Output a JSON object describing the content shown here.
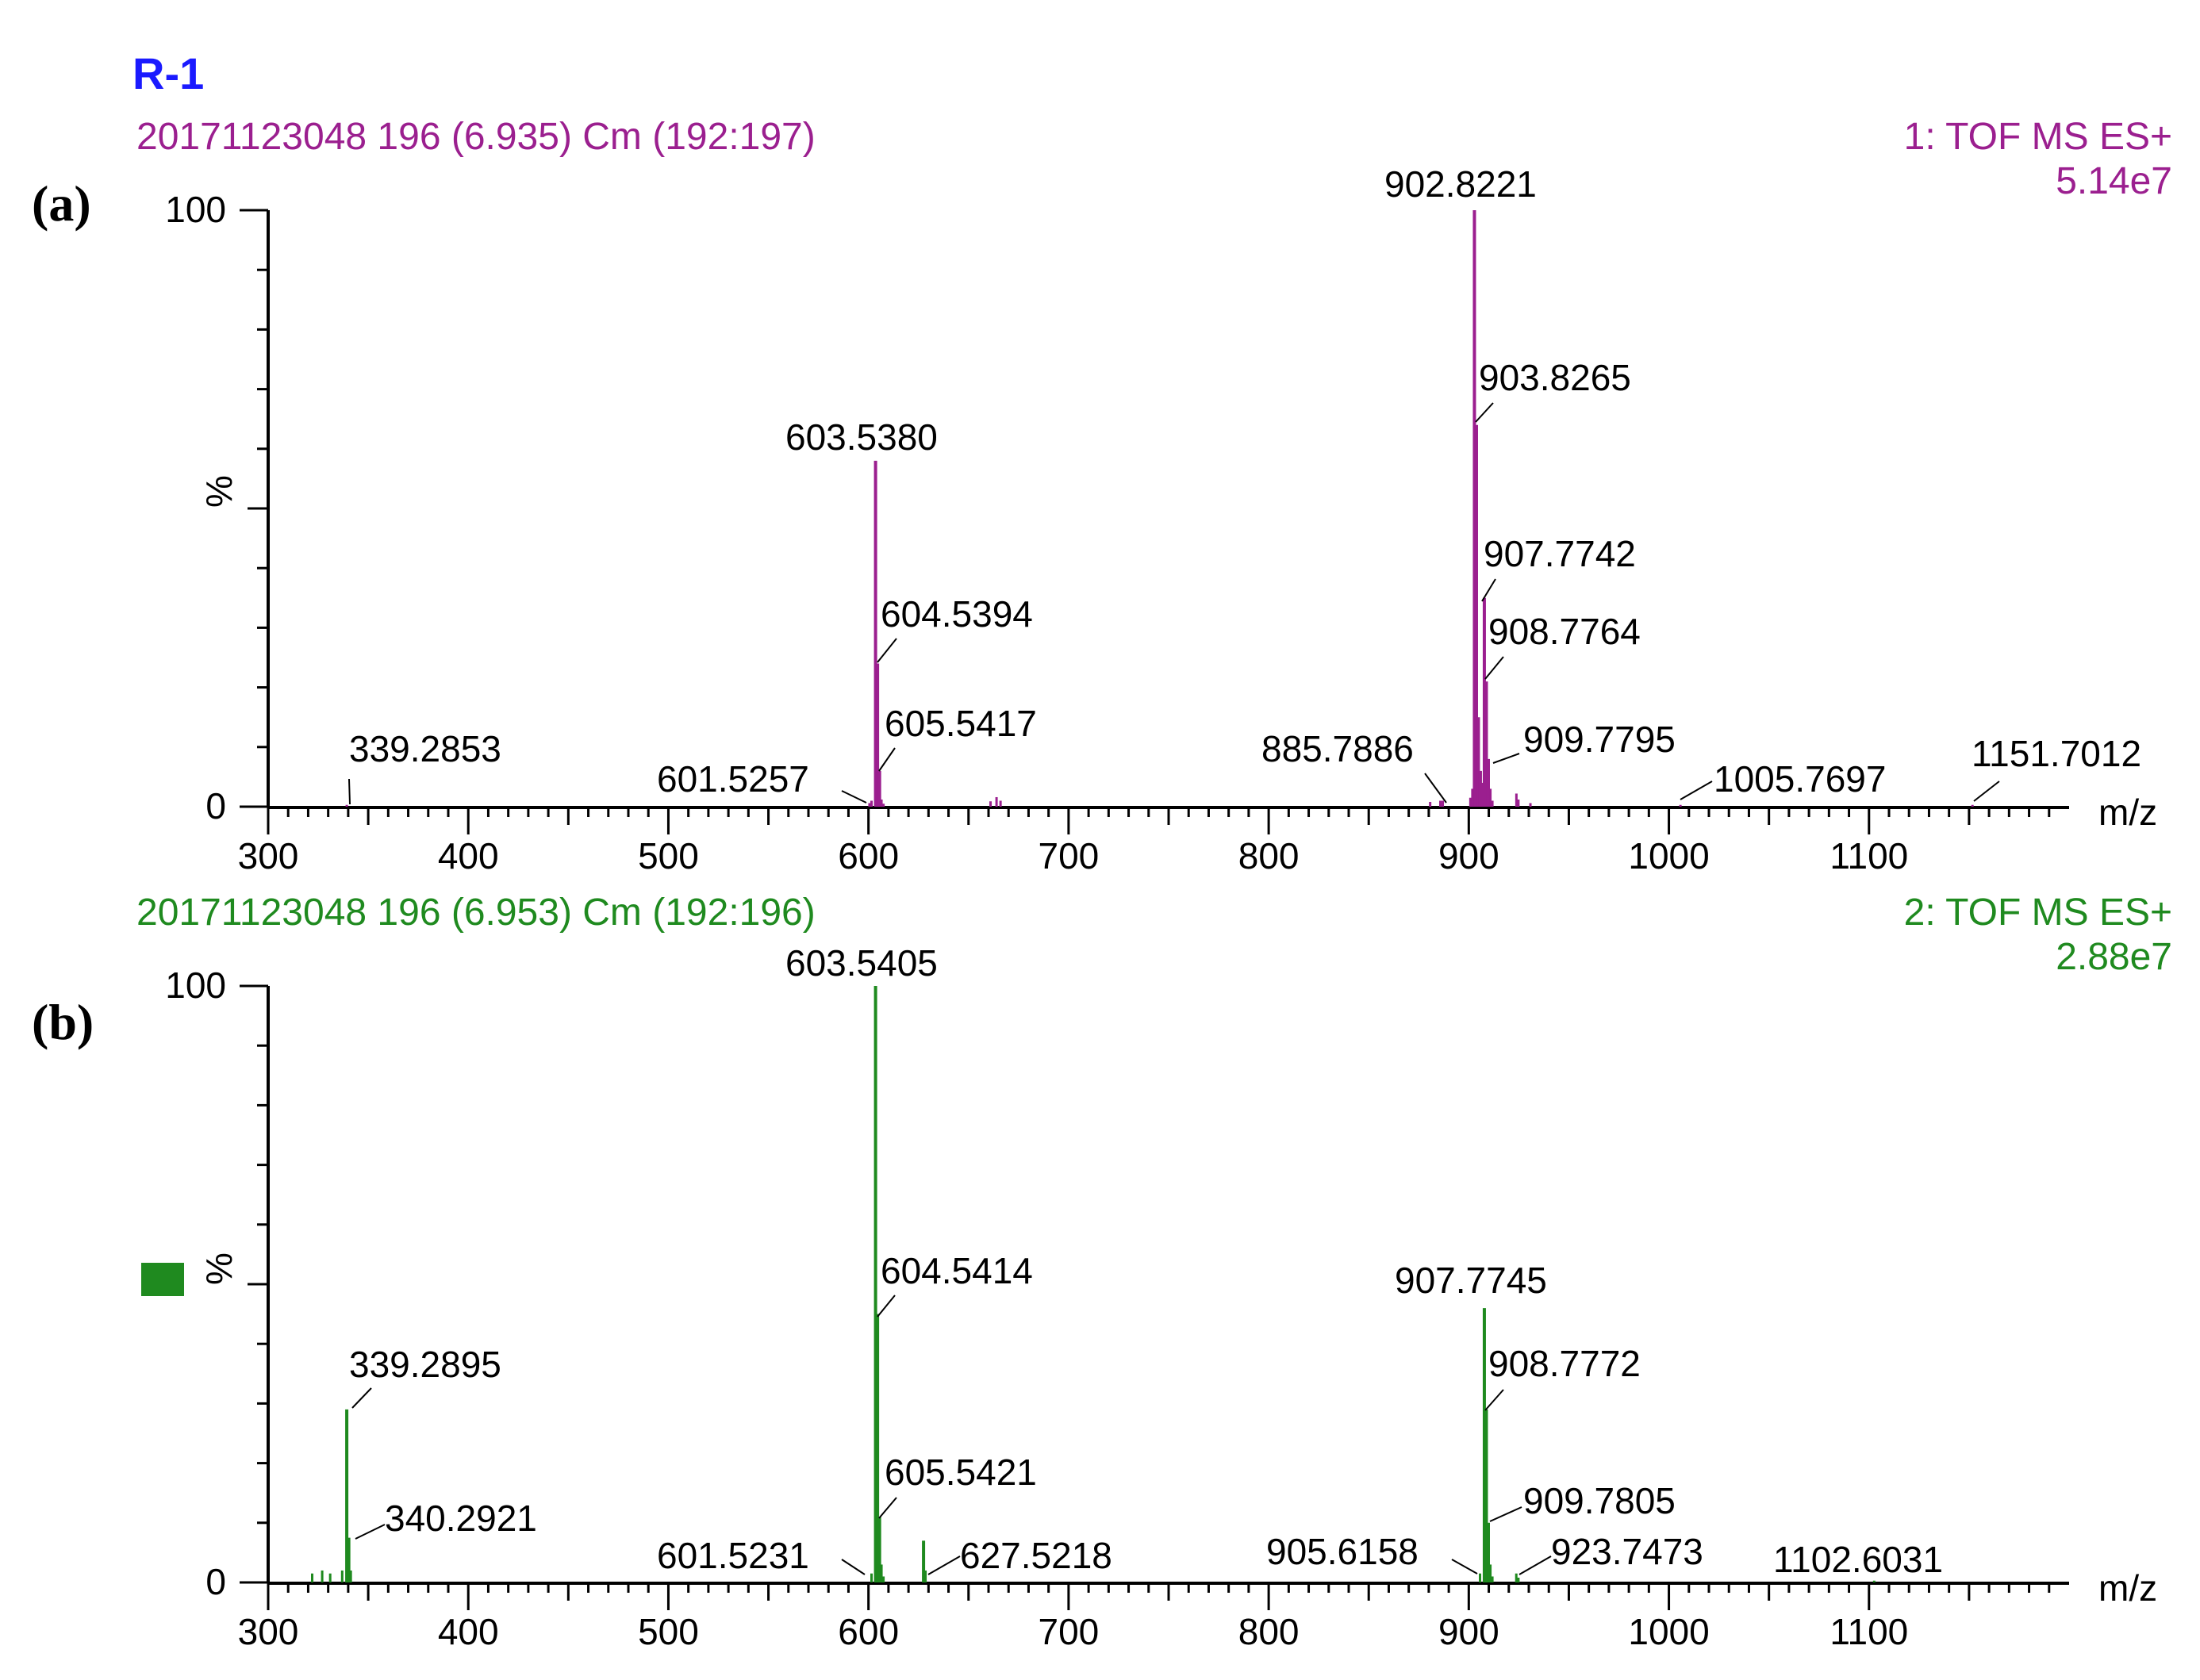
{
  "figure_title": "R-1",
  "colors": {
    "title": "#1a1aff",
    "panel_a": "#9b1f8f",
    "panel_b": "#1f8a1f",
    "axis": "#000000"
  },
  "chart_data": [
    {
      "type": "bar",
      "panel_label": "(a)",
      "scan_info": "20171123048 196 (6.935) Cm (192:197)",
      "function": "1: TOF MS ES+",
      "intensity": "5.14e7",
      "xlabel": "m/z",
      "ylabel": "%",
      "xlim": [
        300,
        1200
      ],
      "ylim": [
        0,
        100
      ],
      "x_ticks": [
        "300",
        "400",
        "500",
        "600",
        "700",
        "800",
        "900",
        "1000",
        "1100"
      ],
      "y_ticks": [
        "0",
        "100"
      ],
      "peaks": [
        {
          "mz": 339.2853,
          "rel": 0.3,
          "label": "339.2853"
        },
        {
          "mz": 601.5257,
          "rel": 1.0,
          "label": "601.5257"
        },
        {
          "mz": 603.538,
          "rel": 58,
          "label": "603.5380"
        },
        {
          "mz": 604.5394,
          "rel": 24,
          "label": "604.5394"
        },
        {
          "mz": 605.5417,
          "rel": 6,
          "label": "605.5417"
        },
        {
          "mz": 885.7886,
          "rel": 1.0,
          "label": "885.7886"
        },
        {
          "mz": 902.8221,
          "rel": 100,
          "label": "902.8221"
        },
        {
          "mz": 903.8265,
          "rel": 64,
          "label": "903.8265"
        },
        {
          "mz": 907.7742,
          "rel": 35,
          "label": "907.7742"
        },
        {
          "mz": 908.7764,
          "rel": 21,
          "label": "908.7764"
        },
        {
          "mz": 909.7795,
          "rel": 8,
          "label": "909.7795"
        },
        {
          "mz": 1005.7697,
          "rel": 0.3,
          "label": "1005.7697"
        },
        {
          "mz": 1151.7012,
          "rel": 0.3,
          "label": "1151.7012"
        },
        {
          "mz": 600.5,
          "rel": 0.6
        },
        {
          "mz": 606.5,
          "rel": 1.2
        },
        {
          "mz": 607.5,
          "rel": 0.5
        },
        {
          "mz": 661,
          "rel": 0.9
        },
        {
          "mz": 664,
          "rel": 1.6
        },
        {
          "mz": 666,
          "rel": 1.0
        },
        {
          "mz": 880.7,
          "rel": 0.8
        },
        {
          "mz": 887,
          "rel": 1.0
        },
        {
          "mz": 900.8,
          "rel": 1.5
        },
        {
          "mz": 901.8,
          "rel": 3
        },
        {
          "mz": 904.8,
          "rel": 15
        },
        {
          "mz": 905.8,
          "rel": 6
        },
        {
          "mz": 906.8,
          "rel": 4
        },
        {
          "mz": 910.8,
          "rel": 3
        },
        {
          "mz": 911.8,
          "rel": 1.0
        },
        {
          "mz": 923.8,
          "rel": 2.2
        },
        {
          "mz": 924.8,
          "rel": 1.2
        },
        {
          "mz": 930.8,
          "rel": 0.6
        }
      ]
    },
    {
      "type": "bar",
      "panel_label": "(b)",
      "scan_info": "20171123048 196 (6.953) Cm (192:196)",
      "function": "2: TOF MS ES+",
      "intensity": "2.88e7",
      "xlabel": "m/z",
      "ylabel": "%",
      "xlim": [
        300,
        1200
      ],
      "ylim": [
        0,
        100
      ],
      "x_ticks": [
        "300",
        "400",
        "500",
        "600",
        "700",
        "800",
        "900",
        "1000",
        "1100"
      ],
      "y_ticks": [
        "0",
        "100"
      ],
      "peaks": [
        {
          "mz": 339.2895,
          "rel": 29,
          "label": "339.2895"
        },
        {
          "mz": 340.2921,
          "rel": 7.5,
          "label": "340.2921"
        },
        {
          "mz": 601.5231,
          "rel": 1.5,
          "label": "601.5231"
        },
        {
          "mz": 603.5405,
          "rel": 100,
          "label": "603.5405"
        },
        {
          "mz": 604.5414,
          "rel": 45,
          "label": "604.5414"
        },
        {
          "mz": 605.5421,
          "rel": 11,
          "label": "605.5421"
        },
        {
          "mz": 627.5218,
          "rel": 7,
          "label": "627.5218"
        },
        {
          "mz": 905.6158,
          "rel": 1.5,
          "label": "905.6158"
        },
        {
          "mz": 907.7745,
          "rel": 46,
          "label": "907.7745"
        },
        {
          "mz": 908.7772,
          "rel": 29,
          "label": "908.7772"
        },
        {
          "mz": 909.7805,
          "rel": 10,
          "label": "909.7805"
        },
        {
          "mz": 923.7473,
          "rel": 1.5,
          "label": "923.7473"
        },
        {
          "mz": 1102.6031,
          "rel": 0.3,
          "label": "1102.6031"
        },
        {
          "mz": 322,
          "rel": 1.5
        },
        {
          "mz": 327,
          "rel": 2
        },
        {
          "mz": 331,
          "rel": 1.5
        },
        {
          "mz": 337,
          "rel": 2
        },
        {
          "mz": 341.3,
          "rel": 2
        },
        {
          "mz": 606.5,
          "rel": 3
        },
        {
          "mz": 607.5,
          "rel": 1
        },
        {
          "mz": 628.5,
          "rel": 2
        },
        {
          "mz": 910.8,
          "rel": 3
        },
        {
          "mz": 911.8,
          "rel": 1
        },
        {
          "mz": 924.8,
          "rel": 0.8
        }
      ]
    }
  ]
}
